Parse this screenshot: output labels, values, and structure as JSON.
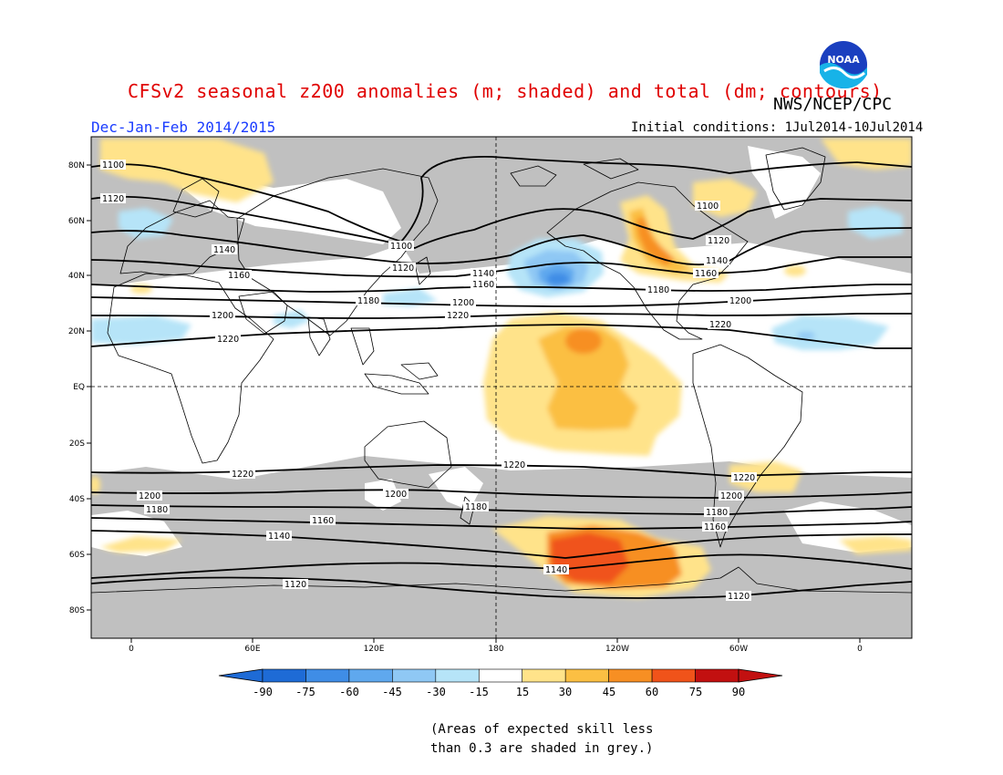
{
  "header": {
    "title": "CFSv2 seasonal z200 anomalies (m; shaded) and total (dm; contours)",
    "agency": "NWS/NCEP/CPC",
    "season": "Dec-Jan-Feb 2014/2015",
    "initial_conditions": "Initial conditions: 1Jul2014-10Jul2014"
  },
  "logo": {
    "text": "NOAA",
    "icon": "noaa-logo"
  },
  "map": {
    "lat_labels": [
      "80N",
      "60N",
      "40N",
      "20N",
      "EQ",
      "20S",
      "40S",
      "60S",
      "80S"
    ],
    "lon_labels": [
      "0",
      "60E",
      "120E",
      "180",
      "120W",
      "60W",
      "0"
    ],
    "contour_labels": [
      "1100",
      "1120",
      "1140",
      "1160",
      "1180",
      "1200",
      "1220"
    ]
  },
  "colorbar": {
    "ticks": [
      "-90",
      "-75",
      "-60",
      "-45",
      "-30",
      "-15",
      "15",
      "30",
      "45",
      "60",
      "75",
      "90"
    ],
    "colors": [
      "#1e6bd6",
      "#3f8de6",
      "#5fa8ee",
      "#8fc8f4",
      "#b6e4f8",
      "#ffffff",
      "#ffe38a",
      "#fbbf43",
      "#f78f23",
      "#f0531a",
      "#c21010"
    ]
  },
  "note": {
    "line1": "(Areas of expected skill less",
    "line2": "than 0.3 are shaded in grey.)"
  },
  "colors": {
    "title": "#e00000",
    "season": "#1a3cff",
    "low_skill_grey": "#c0c0c0"
  }
}
